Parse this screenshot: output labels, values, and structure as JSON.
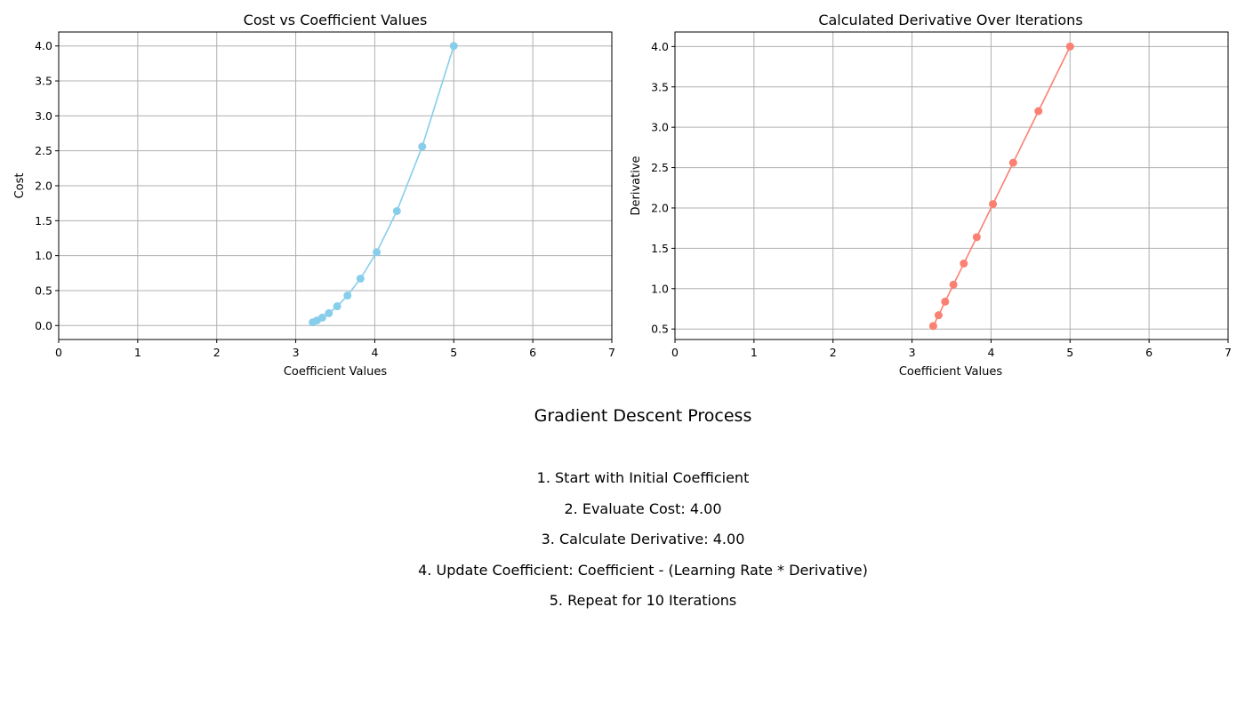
{
  "colors": {
    "cost": "#87CEEB",
    "derivative": "#FA8072",
    "grid": "#b0b0b0"
  },
  "chart_data": [
    {
      "type": "line",
      "title": "Cost vs Coefficient Values",
      "xlabel": "Coefficient Values",
      "ylabel": "Cost",
      "xlim": [
        0,
        7
      ],
      "ylim": [
        -0.2,
        4.2
      ],
      "xticks": [
        "0",
        "1",
        "2",
        "3",
        "4",
        "5",
        "6",
        "7"
      ],
      "yticks": [
        "0.0",
        "0.5",
        "1.0",
        "1.5",
        "2.0",
        "2.5",
        "3.0",
        "3.5",
        "4.0"
      ],
      "grid": true,
      "marker": "circle",
      "series": [
        {
          "x": [
            5.0,
            4.6,
            4.28,
            4.024,
            3.819,
            3.655,
            3.524,
            3.419,
            3.336,
            3.268,
            3.215
          ],
          "y": [
            4.0,
            2.56,
            1.638,
            1.049,
            0.671,
            0.429,
            0.275,
            0.176,
            0.113,
            0.072,
            0.046
          ]
        }
      ]
    },
    {
      "type": "line",
      "title": "Calculated Derivative Over Iterations",
      "xlabel": "Coefficient Values",
      "ylabel": "Derivative",
      "xlim": [
        0,
        7
      ],
      "ylim": [
        0.37,
        4.18
      ],
      "xticks": [
        "0",
        "1",
        "2",
        "3",
        "4",
        "5",
        "6",
        "7"
      ],
      "yticks": [
        "0.5",
        "1.0",
        "1.5",
        "2.0",
        "2.5",
        "3.0",
        "3.5",
        "4.0"
      ],
      "grid": true,
      "marker": "circle",
      "series": [
        {
          "x": [
            5.0,
            4.6,
            4.28,
            4.024,
            3.819,
            3.655,
            3.524,
            3.419,
            3.336,
            3.268
          ],
          "y": [
            4.0,
            3.2,
            2.56,
            2.048,
            1.638,
            1.311,
            1.049,
            0.839,
            0.671,
            0.537
          ]
        }
      ]
    }
  ],
  "process": {
    "title": "Gradient Descent Process",
    "steps": [
      "1. Start with Initial Coefficient",
      "2. Evaluate Cost: 4.00",
      "3. Calculate Derivative: 4.00",
      "4. Update Coefficient: Coefficient - (Learning Rate * Derivative)",
      "5. Repeat for 10 Iterations"
    ]
  }
}
